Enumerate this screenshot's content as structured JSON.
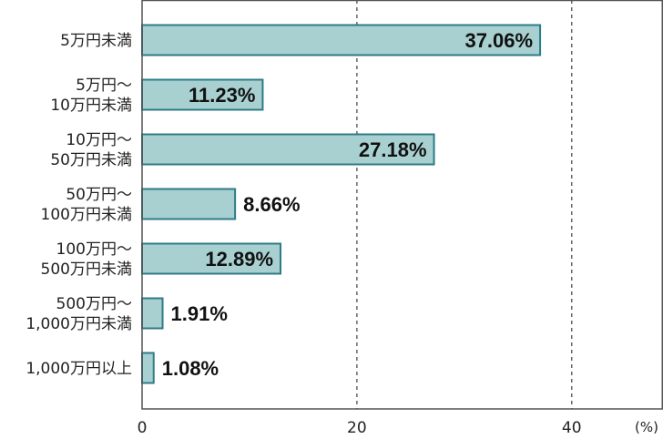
{
  "chart_data": {
    "type": "bar",
    "orientation": "horizontal",
    "categories": [
      [
        "5万円未満"
      ],
      [
        "5万円〜",
        "10万円未満"
      ],
      [
        "10万円〜",
        "50万円未満"
      ],
      [
        "50万円〜",
        "100万円未満"
      ],
      [
        "100万円〜",
        "500万円未満"
      ],
      [
        "500万円〜",
        "1,000万円未満"
      ],
      [
        "1,000万円以上"
      ]
    ],
    "values": [
      37.06,
      11.23,
      27.18,
      8.66,
      12.89,
      1.91,
      1.08
    ],
    "value_labels": [
      "37.06%",
      "11.23%",
      "27.18%",
      "8.66%",
      "12.89%",
      "1.91%",
      "1.08%"
    ],
    "xlim": [
      0,
      48.5
    ],
    "xticks": [
      0,
      20,
      40
    ],
    "xtick_labels": [
      "0",
      "20",
      "40"
    ],
    "x_unit": "(%)",
    "gridlines": [
      20,
      40
    ],
    "grid": "dashed vertical",
    "colors": {
      "bar_fill": "#a8d0d0",
      "bar_stroke": "#2e7b86",
      "grid": "#666666",
      "frame": "#555555"
    }
  }
}
